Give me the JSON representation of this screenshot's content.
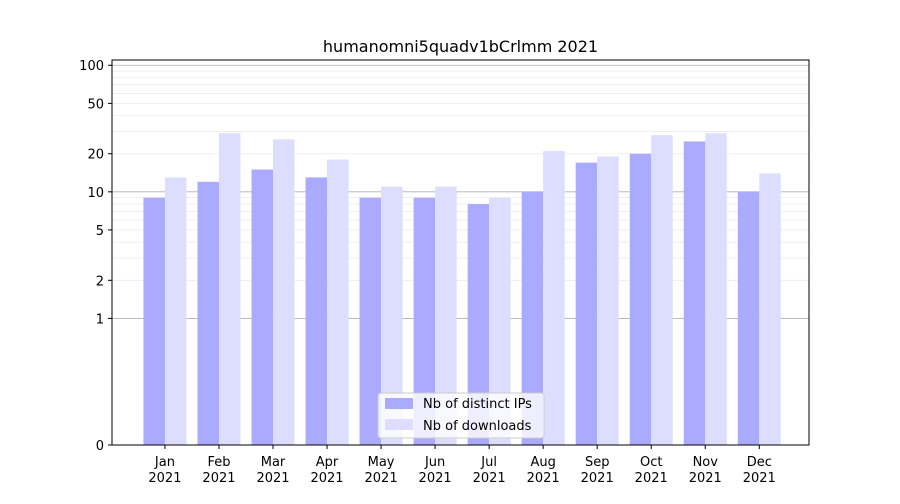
{
  "chart_data": {
    "type": "bar",
    "title": "humanomni5quadv1bCrlmm 2021",
    "xlabel": "",
    "ylabel": "",
    "y_scale": "symlog",
    "y_ticks": [
      0,
      1,
      2,
      5,
      10,
      20,
      50,
      100
    ],
    "y_tick_labels": [
      "0",
      "1",
      "2",
      "5",
      "10",
      "20",
      "50",
      "100"
    ],
    "ylim": [
      0,
      110
    ],
    "categories": [
      "Jan\n2021",
      "Feb\n2021",
      "Mar\n2021",
      "Apr\n2021",
      "May\n2021",
      "Jun\n2021",
      "Jul\n2021",
      "Aug\n2021",
      "Sep\n2021",
      "Oct\n2021",
      "Nov\n2021",
      "Dec\n2021"
    ],
    "series": [
      {
        "name": "Nb of distinct IPs",
        "color": "#aaaaff",
        "values": [
          9,
          12,
          15,
          13,
          9,
          9,
          8,
          10,
          17,
          20,
          25,
          10
        ]
      },
      {
        "name": "Nb of downloads",
        "color": "#ddddff",
        "values": [
          13,
          29,
          26,
          18,
          11,
          11,
          9,
          21,
          19,
          28,
          29,
          14
        ]
      }
    ],
    "grid": true,
    "legend_position": "lower-center"
  }
}
